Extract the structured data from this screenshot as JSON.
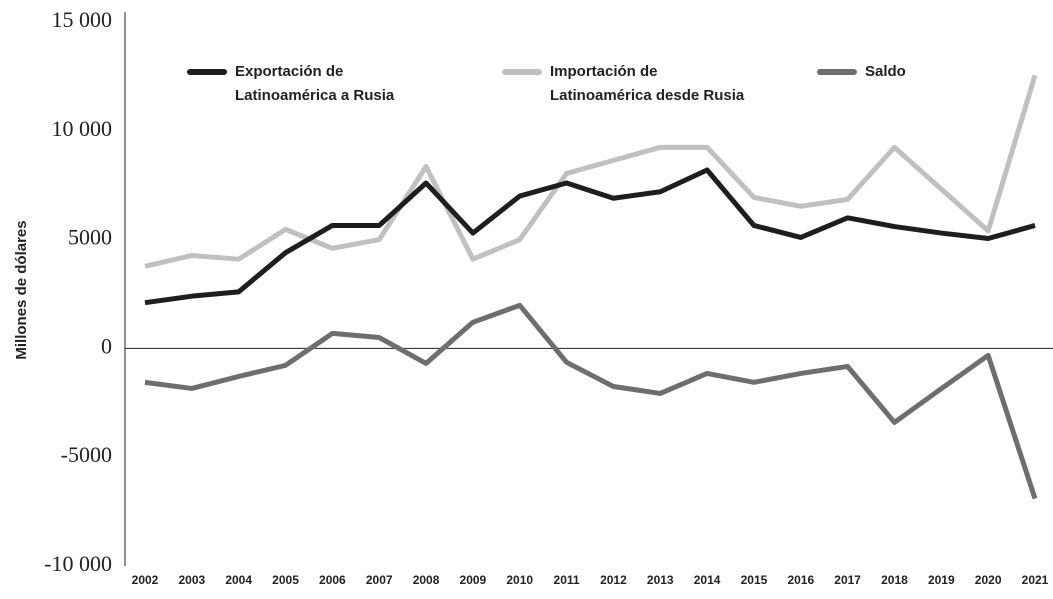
{
  "chart_data": {
    "type": "line",
    "y_label": "Millones de dólares",
    "categories": [
      "2002",
      "2003",
      "2004",
      "2005",
      "2006",
      "2007",
      "2008",
      "2009",
      "2010",
      "2011",
      "2012",
      "2013",
      "2014",
      "2015",
      "2016",
      "2017",
      "2018",
      "2019",
      "2020",
      "2021"
    ],
    "series": [
      {
        "name": "Exportación de Latinoamérica a Rusia",
        "color": "#1e1e1e",
        "values": [
          2100,
          2400,
          2600,
          4400,
          5650,
          5650,
          7600,
          5300,
          7000,
          7600,
          6900,
          7200,
          8200,
          5650,
          5100,
          6000,
          5600,
          5300,
          5050,
          5650
        ]
      },
      {
        "name": "Importación de Latinoamérica desde Rusia",
        "color": "#c0c0c0",
        "values": [
          3770,
          4270,
          4100,
          5470,
          4600,
          5000,
          8360,
          4100,
          5000,
          8040,
          8640,
          9240,
          9240,
          6940,
          6530,
          6850,
          9240,
          7320,
          5400,
          12550
        ]
      },
      {
        "name": "Saldo",
        "color": "#6e6e6e",
        "values": [
          -1560,
          -1840,
          -1290,
          -780,
          690,
          500,
          -690,
          1200,
          1980,
          -640,
          -1750,
          -2070,
          -1150,
          -1560,
          -1150,
          -830,
          -3400,
          -1850,
          -320,
          -6900
        ]
      }
    ],
    "ylim": [
      -10000,
      15000
    ],
    "yticks": [
      {
        "value": 15000,
        "label": "15 000"
      },
      {
        "value": 10000,
        "label": "10 000"
      },
      5000,
      0,
      -5000,
      {
        "value": -10000,
        "label": "-10 000"
      }
    ]
  }
}
